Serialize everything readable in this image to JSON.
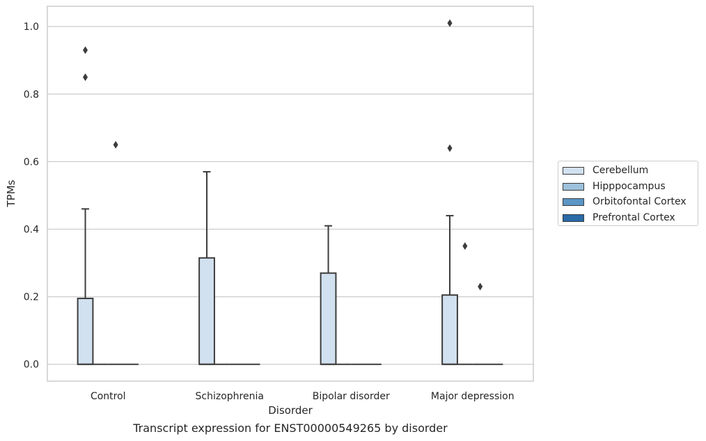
{
  "chart_data": {
    "type": "box",
    "title": "",
    "caption": "Transcript expression for ENST00000549265 by disorder",
    "xlabel": "Disorder",
    "ylabel": "TPMs",
    "ylim": [
      -0.05,
      1.06
    ],
    "yticks": [
      0.0,
      0.2,
      0.4,
      0.6,
      0.8,
      1.0
    ],
    "ytick_labels": [
      "0.0",
      "0.2",
      "0.4",
      "0.6",
      "0.8",
      "1.0"
    ],
    "categories": [
      "Control",
      "Schizophrenia",
      "Bipolar disorder",
      "Major depression"
    ],
    "grid": true,
    "legend_position": "right",
    "series": [
      {
        "name": "Cerebellum",
        "color": "#d2e1f0",
        "boxes": [
          {
            "min": 0.0,
            "q1": 0.0,
            "median": 0.0,
            "q3": 0.195,
            "max": 0.46,
            "outliers": [
              0.85,
              0.93
            ]
          },
          {
            "min": 0.0,
            "q1": 0.0,
            "median": 0.0,
            "q3": 0.315,
            "max": 0.57,
            "outliers": []
          },
          {
            "min": 0.0,
            "q1": 0.0,
            "median": 0.0,
            "q3": 0.27,
            "max": 0.41,
            "outliers": []
          },
          {
            "min": 0.0,
            "q1": 0.0,
            "median": 0.0,
            "q3": 0.205,
            "max": 0.44,
            "outliers": [
              0.64,
              1.01
            ]
          }
        ]
      },
      {
        "name": "Hipppocampus",
        "color": "#9dc1dc",
        "boxes": [
          {
            "min": 0.0,
            "q1": 0.0,
            "median": 0.0,
            "q3": 0.0,
            "max": 0.0,
            "outliers": []
          },
          {
            "min": 0.0,
            "q1": 0.0,
            "median": 0.0,
            "q3": 0.0,
            "max": 0.0,
            "outliers": []
          },
          {
            "min": 0.0,
            "q1": 0.0,
            "median": 0.0,
            "q3": 0.0,
            "max": 0.0,
            "outliers": []
          },
          {
            "min": 0.0,
            "q1": 0.0,
            "median": 0.0,
            "q3": 0.0,
            "max": 0.0,
            "outliers": [
              0.35
            ]
          }
        ]
      },
      {
        "name": "Orbitofontal Cortex",
        "color": "#5a96c6",
        "boxes": [
          {
            "min": 0.0,
            "q1": 0.0,
            "median": 0.0,
            "q3": 0.0,
            "max": 0.0,
            "outliers": [
              0.65
            ]
          },
          {
            "min": 0.0,
            "q1": 0.0,
            "median": 0.0,
            "q3": 0.0,
            "max": 0.0,
            "outliers": []
          },
          {
            "min": 0.0,
            "q1": 0.0,
            "median": 0.0,
            "q3": 0.0,
            "max": 0.0,
            "outliers": []
          },
          {
            "min": 0.0,
            "q1": 0.0,
            "median": 0.0,
            "q3": 0.0,
            "max": 0.0,
            "outliers": [
              0.23
            ]
          }
        ]
      },
      {
        "name": "Prefrontal Cortex",
        "color": "#2a6aa8",
        "boxes": [
          {
            "min": 0.0,
            "q1": 0.0,
            "median": 0.0,
            "q3": 0.0,
            "max": 0.0,
            "outliers": []
          },
          {
            "min": 0.0,
            "q1": 0.0,
            "median": 0.0,
            "q3": 0.0,
            "max": 0.0,
            "outliers": []
          },
          {
            "min": 0.0,
            "q1": 0.0,
            "median": 0.0,
            "q3": 0.0,
            "max": 0.0,
            "outliers": []
          },
          {
            "min": 0.0,
            "q1": 0.0,
            "median": 0.0,
            "q3": 0.0,
            "max": 0.0,
            "outliers": []
          }
        ]
      }
    ]
  }
}
